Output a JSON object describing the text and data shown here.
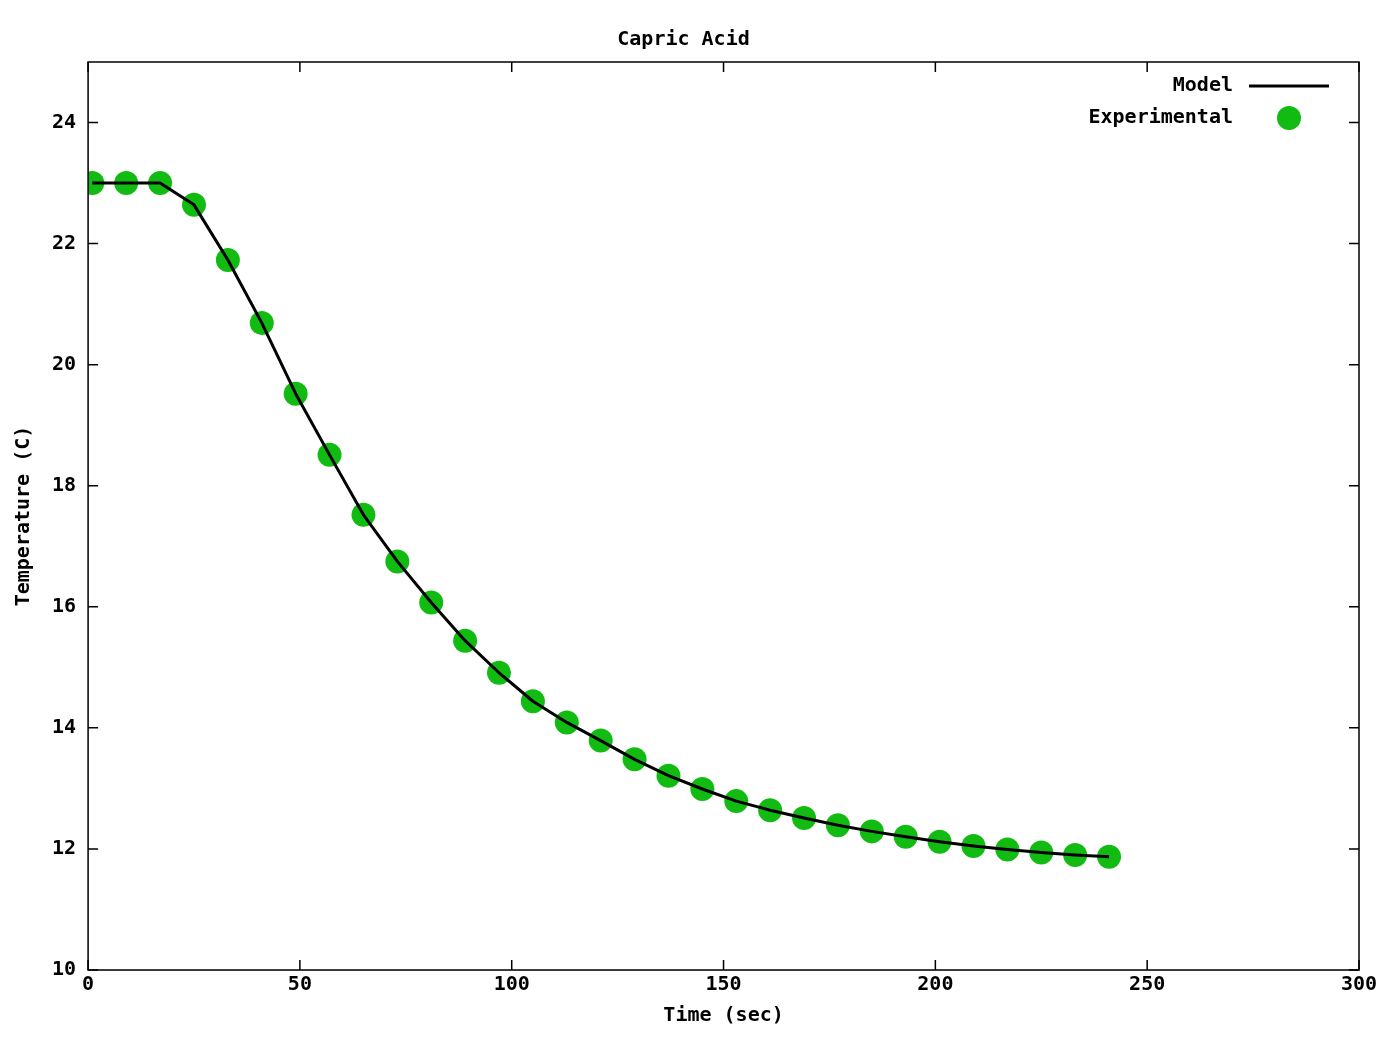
{
  "chart_data": {
    "type": "line",
    "title": "Capric Acid",
    "xlabel": "Time (sec)",
    "ylabel": "Temperature (C)",
    "x": [
      1,
      9,
      17,
      25,
      33,
      41,
      49,
      57,
      65,
      73,
      81,
      89,
      97,
      105,
      113,
      121,
      129,
      137,
      145,
      153,
      161,
      169,
      177,
      185,
      193,
      201,
      209,
      217,
      225,
      233,
      241
    ],
    "series": [
      {
        "name": "Model",
        "color": "#000000",
        "marker": "none",
        "values": [
          23.0,
          23.0,
          23.0,
          22.64,
          21.73,
          20.69,
          19.52,
          18.51,
          17.52,
          16.75,
          16.07,
          15.44,
          14.91,
          14.44,
          14.09,
          13.79,
          13.48,
          13.21,
          12.99,
          12.79,
          12.64,
          12.51,
          12.39,
          12.29,
          12.2,
          12.12,
          12.05,
          11.99,
          11.94,
          11.9,
          11.87
        ]
      },
      {
        "name": "Experimental",
        "type": "scatter",
        "color": "#11bb11",
        "marker": "circle",
        "values": [
          23.0,
          23.0,
          23.0,
          22.64,
          21.73,
          20.69,
          19.52,
          18.51,
          17.52,
          16.75,
          16.07,
          15.44,
          14.91,
          14.44,
          14.09,
          13.79,
          13.48,
          13.21,
          12.99,
          12.79,
          12.64,
          12.51,
          12.39,
          12.29,
          12.2,
          12.12,
          12.05,
          11.99,
          11.94,
          11.9,
          11.87
        ]
      }
    ],
    "xlim": [
      0,
      300
    ],
    "xticks": [
      0,
      50,
      100,
      150,
      200,
      250,
      300
    ],
    "ylim": [
      10,
      25
    ],
    "yticks": [
      10,
      12,
      14,
      16,
      18,
      20,
      22,
      24
    ],
    "grid": false,
    "legend": "top right"
  }
}
